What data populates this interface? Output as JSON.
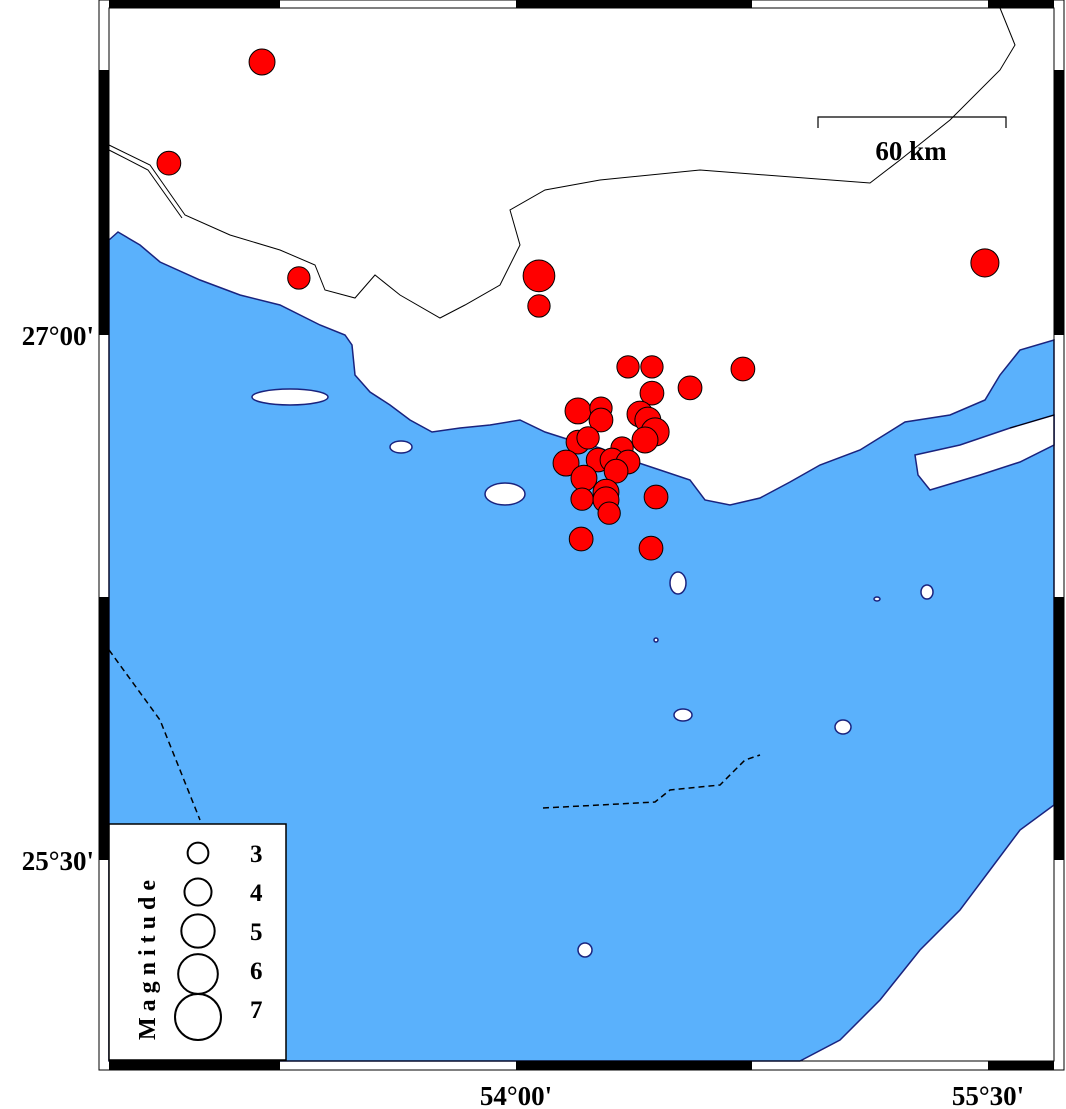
{
  "map": {
    "colors": {
      "sea": "#5ab1fc",
      "land": "#ffffff",
      "coastline": "#1a237e",
      "event": "#ff0000",
      "event_stroke": "#000000"
    },
    "region": {
      "lon_min": 52.707,
      "lon_max": 55.71,
      "lat_min": 24.926,
      "lat_max": 27.934
    },
    "lon_ticks": [
      {
        "value": 54.0,
        "label": "54°00'"
      },
      {
        "value": 55.5,
        "label": "55°30'"
      }
    ],
    "lat_ticks": [
      {
        "value": 27.0,
        "label": "27°00'"
      },
      {
        "value": 25.5,
        "label": "25°30'"
      }
    ],
    "scale_bar": {
      "label": "60 km",
      "length_km": 60
    },
    "legend": {
      "title": "Magnitude",
      "entries": [
        {
          "mag": 3,
          "label": "3"
        },
        {
          "mag": 4,
          "label": "4"
        },
        {
          "mag": 5,
          "label": "5"
        },
        {
          "mag": 6,
          "label": "6"
        },
        {
          "mag": 7,
          "label": "7"
        }
      ]
    },
    "events": [
      {
        "lon": 53.193,
        "lat": 27.78,
        "mag": 3.6
      },
      {
        "lon": 52.897,
        "lat": 27.491,
        "mag": 3.3
      },
      {
        "lon": 53.31,
        "lat": 27.163,
        "mag": 3.1
      },
      {
        "lon": 54.073,
        "lat": 27.169,
        "mag": 4.4
      },
      {
        "lon": 54.073,
        "lat": 27.083,
        "mag": 3.1
      },
      {
        "lon": 55.49,
        "lat": 27.206,
        "mag": 3.9
      },
      {
        "lon": 54.356,
        "lat": 26.909,
        "mag": 3.1
      },
      {
        "lon": 54.432,
        "lat": 26.909,
        "mag": 3.1
      },
      {
        "lon": 54.721,
        "lat": 26.903,
        "mag": 3.3
      },
      {
        "lon": 54.553,
        "lat": 26.849,
        "mag": 3.3
      },
      {
        "lon": 54.432,
        "lat": 26.834,
        "mag": 3.3
      },
      {
        "lon": 54.197,
        "lat": 26.783,
        "mag": 3.6
      },
      {
        "lon": 54.27,
        "lat": 26.791,
        "mag": 3.1
      },
      {
        "lon": 54.27,
        "lat": 26.757,
        "mag": 3.3
      },
      {
        "lon": 54.394,
        "lat": 26.774,
        "mag": 3.6
      },
      {
        "lon": 54.419,
        "lat": 26.757,
        "mag": 3.6
      },
      {
        "lon": 54.442,
        "lat": 26.723,
        "mag": 3.9
      },
      {
        "lon": 54.41,
        "lat": 26.7,
        "mag": 3.6
      },
      {
        "lon": 54.197,
        "lat": 26.694,
        "mag": 3.3
      },
      {
        "lon": 54.229,
        "lat": 26.706,
        "mag": 3.1
      },
      {
        "lon": 54.337,
        "lat": 26.677,
        "mag": 3.1
      },
      {
        "lon": 54.159,
        "lat": 26.634,
        "mag": 3.6
      },
      {
        "lon": 54.261,
        "lat": 26.643,
        "mag": 3.3
      },
      {
        "lon": 54.305,
        "lat": 26.643,
        "mag": 3.3
      },
      {
        "lon": 54.356,
        "lat": 26.637,
        "mag": 3.3
      },
      {
        "lon": 54.216,
        "lat": 26.591,
        "mag": 3.6
      },
      {
        "lon": 54.318,
        "lat": 26.611,
        "mag": 3.3
      },
      {
        "lon": 54.21,
        "lat": 26.531,
        "mag": 3.1
      },
      {
        "lon": 54.286,
        "lat": 26.551,
        "mag": 3.6
      },
      {
        "lon": 54.286,
        "lat": 26.529,
        "mag": 3.6
      },
      {
        "lon": 54.296,
        "lat": 26.491,
        "mag": 3.1
      },
      {
        "lon": 54.445,
        "lat": 26.537,
        "mag": 3.3
      },
      {
        "lon": 54.207,
        "lat": 26.417,
        "mag": 3.3
      },
      {
        "lon": 54.429,
        "lat": 26.391,
        "mag": 3.3
      }
    ]
  }
}
